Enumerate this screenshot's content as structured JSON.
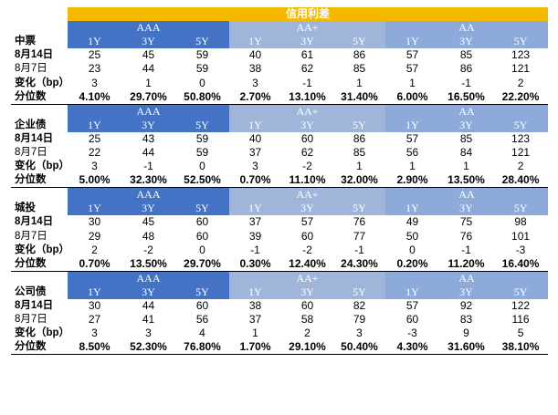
{
  "title": "信用利差",
  "blocks": [
    {
      "name": "中票",
      "groups": [
        "AAA",
        "AA+",
        "AA"
      ],
      "tenors": [
        "1Y",
        "3Y",
        "5Y"
      ],
      "rows": [
        {
          "label": "8月14日",
          "values": [
            "25",
            "45",
            "59",
            "40",
            "61",
            "86",
            "57",
            "85",
            "123"
          ]
        },
        {
          "label": "8月7日",
          "values": [
            "23",
            "44",
            "59",
            "38",
            "62",
            "85",
            "57",
            "86",
            "121"
          ]
        },
        {
          "label": "变化（bp）",
          "values": [
            "3",
            "1",
            "0",
            "3",
            "-1",
            "1",
            "1",
            "-1",
            "2"
          ]
        },
        {
          "label": "分位数",
          "values": [
            "4.10%",
            "29.70%",
            "50.80%",
            "2.70%",
            "13.10%",
            "31.40%",
            "6.00%",
            "16.50%",
            "22.20%"
          ]
        }
      ]
    },
    {
      "name": "企业债",
      "groups": [
        "AAA",
        "AA+",
        "AA"
      ],
      "tenors": [
        "1Y",
        "3Y",
        "5Y"
      ],
      "rows": [
        {
          "label": "8月14日",
          "values": [
            "25",
            "43",
            "59",
            "40",
            "60",
            "86",
            "57",
            "85",
            "123"
          ]
        },
        {
          "label": "8月7日",
          "values": [
            "22",
            "44",
            "59",
            "37",
            "62",
            "85",
            "56",
            "84",
            "121"
          ]
        },
        {
          "label": "变化（bp）",
          "values": [
            "3",
            "-1",
            "0",
            "3",
            "-2",
            "1",
            "1",
            "1",
            "2"
          ]
        },
        {
          "label": "分位数",
          "values": [
            "5.00%",
            "32.30%",
            "52.50%",
            "0.70%",
            "11.10%",
            "32.00%",
            "2.90%",
            "13.50%",
            "28.40%"
          ]
        }
      ]
    },
    {
      "name": "城投",
      "groups": [
        "AAA",
        "AA+",
        "AA"
      ],
      "tenors": [
        "1Y",
        "3Y",
        "5Y"
      ],
      "rows": [
        {
          "label": "8月14日",
          "values": [
            "30",
            "45",
            "60",
            "37",
            "57",
            "76",
            "49",
            "75",
            "98"
          ]
        },
        {
          "label": "8月7日",
          "values": [
            "29",
            "48",
            "60",
            "39",
            "60",
            "77",
            "50",
            "76",
            "101"
          ]
        },
        {
          "label": "变化（bp）",
          "values": [
            "2",
            "-2",
            "0",
            "-1",
            "-2",
            "-1",
            "0",
            "-1",
            "-3"
          ]
        },
        {
          "label": "分位数",
          "values": [
            "0.70%",
            "13.50%",
            "29.70%",
            "0.30%",
            "12.40%",
            "24.30%",
            "0.20%",
            "11.20%",
            "16.40%"
          ]
        }
      ]
    },
    {
      "name": "公司债",
      "groups": [
        "AAA",
        "AA+",
        "AA"
      ],
      "tenors": [
        "1Y",
        "3Y",
        "5Y"
      ],
      "rows": [
        {
          "label": "8月14日",
          "values": [
            "30",
            "44",
            "60",
            "38",
            "60",
            "82",
            "57",
            "92",
            "122"
          ]
        },
        {
          "label": "8月7日",
          "values": [
            "27",
            "41",
            "56",
            "37",
            "58",
            "79",
            "60",
            "83",
            "116"
          ]
        },
        {
          "label": "变化（bp）",
          "values": [
            "3",
            "3",
            "4",
            "1",
            "2",
            "3",
            "-3",
            "9",
            "5"
          ]
        },
        {
          "label": "分位数",
          "values": [
            "8.50%",
            "52.30%",
            "76.80%",
            "1.70%",
            "29.10%",
            "50.40%",
            "4.30%",
            "31.60%",
            "38.10%"
          ]
        }
      ]
    }
  ]
}
